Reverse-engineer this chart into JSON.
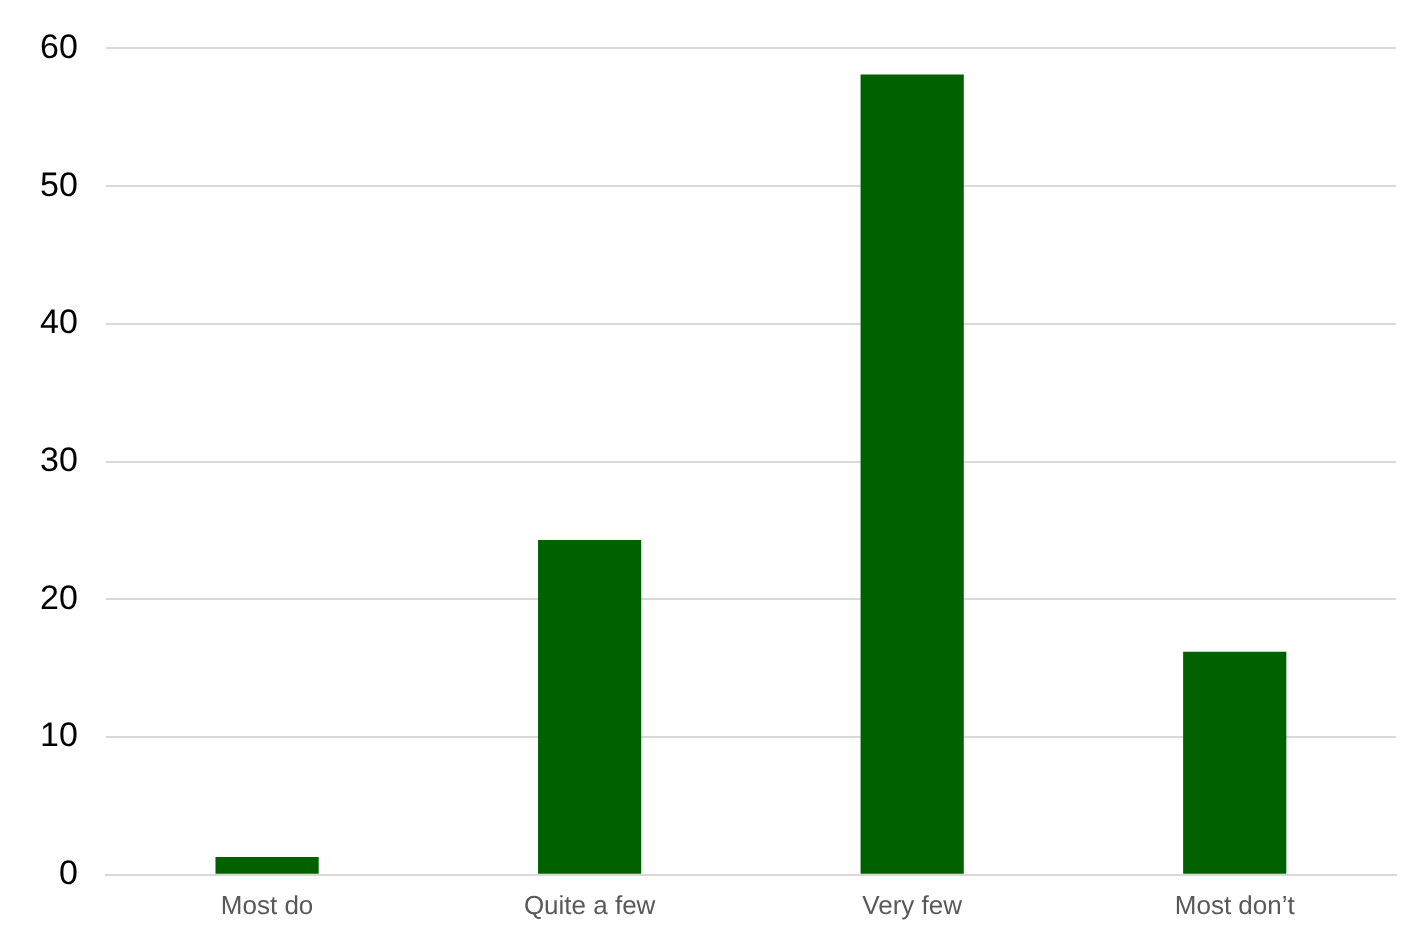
{
  "chart_data": {
    "type": "bar",
    "categories": [
      "Most do",
      "Quite a few",
      "Very few",
      "Most don’t"
    ],
    "values": [
      1.3,
      24.3,
      58.1,
      16.2
    ],
    "color": "#006100",
    "ylim": [
      0,
      60
    ],
    "yticks": [
      0,
      10,
      20,
      30,
      40,
      50,
      60
    ],
    "grid": "y"
  }
}
